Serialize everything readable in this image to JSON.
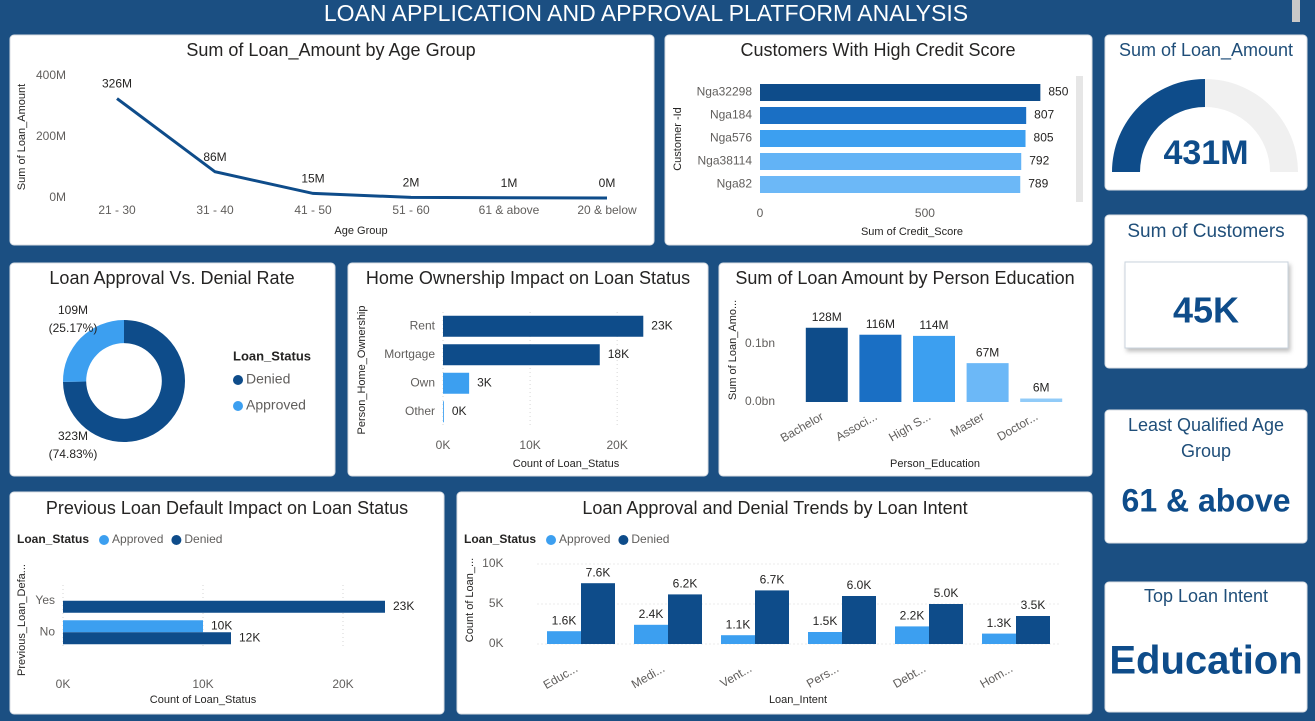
{
  "title": "LOAN APPLICATION AND APPROVAL PLATFORM ANALYSIS",
  "chart_data": [
    {
      "type": "line",
      "title": "Sum of Loan_Amount by Age Group",
      "x_label": "Age Group",
      "y_label": "Sum of Loan_Amount",
      "categories": [
        "21 - 30",
        "31 - 40",
        "41 - 50",
        "51 - 60",
        "61 & above",
        "20 & below"
      ],
      "values": [
        326000000,
        86000000,
        15000000,
        2000000,
        1000000,
        0
      ],
      "value_labels": [
        "326M",
        "86M",
        "15M",
        "2M",
        "1M",
        "0M"
      ],
      "color": "#0e4c8a",
      "ylim": [
        0,
        400000000
      ],
      "yticks": [
        {
          "value": 0,
          "label": "0M"
        },
        {
          "value": 200000000,
          "label": "200M"
        },
        {
          "value": 400000000,
          "label": "400M"
        }
      ],
      "grid": false
    },
    {
      "type": "bar",
      "orientation": "horizontal",
      "title": "Customers With High Credit Score",
      "x_label": "Sum of Credit_Score",
      "y_label": "Customer -Id",
      "categories": [
        "Nga32298",
        "Nga184",
        "Nga576",
        "Nga38114",
        "Nga82"
      ],
      "values": [
        850,
        807,
        805,
        792,
        789
      ],
      "colors": [
        "#0e4c8a",
        "#1a6fc4",
        "#3c9ff0",
        "#62b3f6",
        "#6cb8f7"
      ],
      "xlim": [
        0,
        955
      ],
      "xticks": [
        0,
        500
      ],
      "grid": false
    },
    {
      "type": "pie",
      "title": "Loan Approval Vs. Denial Rate",
      "legend_title": "Loan_Status",
      "legend": "right",
      "categories": [
        "Denied",
        "Approved"
      ],
      "values": [
        323000000,
        109000000
      ],
      "value_labels": [
        "323M",
        "109M"
      ],
      "percent_labels": [
        "(74.83%)",
        "(25.17%)"
      ],
      "colors": [
        "#0e4c8a",
        "#3c9ff0"
      ],
      "hole": 0.62
    },
    {
      "type": "bar",
      "orientation": "horizontal",
      "title": "Home Ownership Impact on Loan Status",
      "x_label": "Count of Loan_Status",
      "y_label": "Person_Home_Ownership",
      "categories": [
        "Rent",
        "Mortgage",
        "Own",
        "Other"
      ],
      "values": [
        23000,
        18000,
        3000,
        100
      ],
      "value_labels": [
        "23K",
        "18K",
        "3K",
        "0K"
      ],
      "colors": [
        "#0e4c8a",
        "#0e4c8a",
        "#3c9ff0",
        "#3c9ff0"
      ],
      "xlim": [
        0,
        24000
      ],
      "xticks": [
        {
          "value": 0,
          "label": "0K"
        },
        {
          "value": 10000,
          "label": "10K"
        },
        {
          "value": 20000,
          "label": "20K"
        }
      ],
      "grid": true
    },
    {
      "type": "bar",
      "title": "Sum of Loan Amount by Person Education",
      "x_label": "Person_Education",
      "y_label": "Sum of Loan_Amo...",
      "categories": [
        "Bachelor",
        "Associ...",
        "High S...",
        "Master",
        "Doctor..."
      ],
      "values": [
        128000000,
        116000000,
        114000000,
        67000000,
        6000000
      ],
      "value_labels": [
        "128M",
        "116M",
        "114M",
        "67M",
        "6M"
      ],
      "colors": [
        "#0e4c8a",
        "#1a6fc4",
        "#3c9ff0",
        "#6cb8f7",
        "#91cbf8"
      ],
      "ylim": [
        0,
        150000000
      ],
      "yticks": [
        {
          "value": 0,
          "label": "0.0bn"
        },
        {
          "value": 100000000,
          "label": "0.1bn"
        }
      ],
      "grid": false
    },
    {
      "type": "bar",
      "orientation": "horizontal",
      "title": "Previous Loan Default Impact on Loan Status",
      "legend_title": "Loan_Status",
      "legend": "top-left",
      "x_label": "Count of Loan_Status",
      "y_label": "Previous_Loan_Defa...",
      "categories": [
        "Yes",
        "No"
      ],
      "series": [
        {
          "name": "Approved",
          "color": "#3c9ff0",
          "values": [
            null,
            10000
          ],
          "value_labels": [
            null,
            "10K"
          ]
        },
        {
          "name": "Denied",
          "color": "#0e4c8a",
          "values": [
            23000,
            12000
          ],
          "value_labels": [
            "23K",
            "12K"
          ]
        }
      ],
      "xlim": [
        0,
        24000
      ],
      "xticks": [
        {
          "value": 0,
          "label": "0K"
        },
        {
          "value": 10000,
          "label": "10K"
        },
        {
          "value": 20000,
          "label": "20K"
        }
      ],
      "grid": true
    },
    {
      "type": "bar",
      "title": "Loan Approval and Denial Trends by Loan Intent",
      "legend_title": "Loan_Status",
      "legend": "top-left",
      "x_label": "Loan_Intent",
      "y_label": "Count of Loan_...",
      "categories": [
        "Educ...",
        "Medi...",
        "Vent...",
        "Pers...",
        "Debt...",
        "Hom..."
      ],
      "series": [
        {
          "name": "Approved",
          "color": "#3c9ff0",
          "values": [
            1600,
            2400,
            1100,
            1500,
            2200,
            1300
          ],
          "value_labels": [
            "1.6K",
            "2.4K",
            "1.1K",
            "1.5K",
            "2.2K",
            "1.3K"
          ]
        },
        {
          "name": "Denied",
          "color": "#0e4c8a",
          "values": [
            7600,
            6200,
            6700,
            6000,
            5000,
            3500
          ],
          "value_labels": [
            "7.6K",
            "6.2K",
            "6.7K",
            "6.0K",
            "5.0K",
            "3.5K"
          ]
        }
      ],
      "ylim": [
        0,
        10000
      ],
      "yticks": [
        {
          "value": 0,
          "label": "0K"
        },
        {
          "value": 5000,
          "label": "5K"
        },
        {
          "value": 10000,
          "label": "10K"
        }
      ],
      "grid": true
    }
  ],
  "cards": [
    {
      "type": "gauge",
      "title": "Sum of Loan_Amount",
      "value": 431000000,
      "value_label": "431M",
      "max": 862000000,
      "color": "#0e4c8a"
    },
    {
      "title": "Sum of Customers",
      "value": 45000,
      "value_label": "45K"
    },
    {
      "title": "Least Qualified Age Group",
      "text": "61 & above"
    },
    {
      "title": "Top Loan Intent",
      "text": "Education"
    }
  ]
}
